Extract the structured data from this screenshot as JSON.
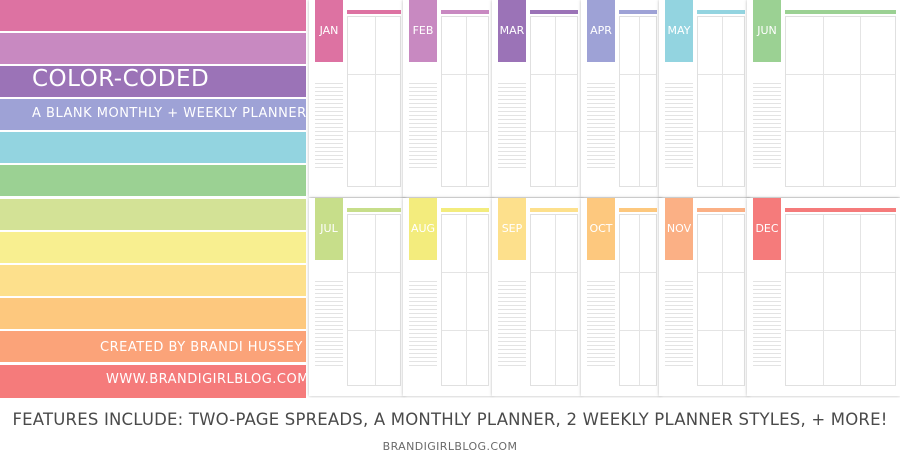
{
  "left_panel": {
    "title": "COLOR-CODED",
    "subtitle": "A BLANK MONTHLY + WEEKLY PLANNER",
    "credit": "CREATED BY BRANDI HUSSEY",
    "url": "WWW.BRANDIGIRLBLOG.COM",
    "stripe_colors": [
      "#dd72a2",
      "#c889c1",
      "#9b73b7",
      "#9ea2d6",
      "#93d4e0",
      "#9bd193",
      "#d3e296",
      "#f8ef90",
      "#fde08c",
      "#fdc87e",
      "#fba379",
      "#f57b7b"
    ]
  },
  "months_top": [
    {
      "label": "JAN",
      "color": "#dd72a2"
    },
    {
      "label": "FEB",
      "color": "#c889c1"
    },
    {
      "label": "MAR",
      "color": "#9b73b7"
    },
    {
      "label": "APR",
      "color": "#9ea2d6"
    },
    {
      "label": "MAY",
      "color": "#93d4e0"
    },
    {
      "label": "JUN",
      "color": "#9bd193"
    }
  ],
  "months_bottom": [
    {
      "label": "JUL",
      "color": "#c7de8a"
    },
    {
      "label": "AUG",
      "color": "#f3ec7d"
    },
    {
      "label": "SEP",
      "color": "#fde08c"
    },
    {
      "label": "OCT",
      "color": "#fdc87e"
    },
    {
      "label": "NOV",
      "color": "#fbb085"
    },
    {
      "label": "DEC",
      "color": "#f57b7b"
    }
  ],
  "banner": {
    "features": "FEATURES INCLUDE: TWO-PAGE SPREADS, A MONTHLY PLANNER, 2 WEEKLY PLANNER STYLES, + MORE!",
    "site": "BRANDIGIRLBLOG.COM"
  }
}
